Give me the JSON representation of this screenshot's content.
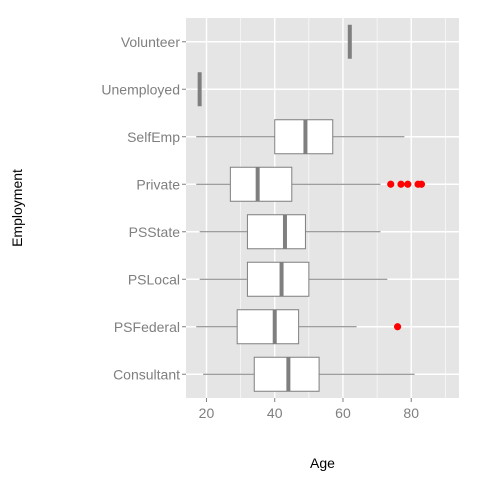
{
  "chart_data": {
    "type": "boxplot",
    "orientation": "horizontal",
    "xlabel": "Age",
    "ylabel": "Employment",
    "xlim": [
      14,
      94
    ],
    "x_ticks": [
      20,
      40,
      60,
      80
    ],
    "grid": true,
    "categories": [
      "Consultant",
      "PSFederal",
      "PSLocal",
      "PSState",
      "Private",
      "SelfEmp",
      "Unemployed",
      "Volunteer"
    ],
    "boxes": [
      {
        "category": "Consultant",
        "whisker_low": 19,
        "q1": 34,
        "median": 44,
        "q3": 53,
        "whisker_high": 81,
        "outliers": []
      },
      {
        "category": "PSFederal",
        "whisker_low": 17,
        "q1": 29,
        "median": 40,
        "q3": 47,
        "whisker_high": 64,
        "outliers": [
          76
        ]
      },
      {
        "category": "PSLocal",
        "whisker_low": 18,
        "q1": 32,
        "median": 42,
        "q3": 50,
        "whisker_high": 73,
        "outliers": []
      },
      {
        "category": "PSState",
        "whisker_low": 18,
        "q1": 32,
        "median": 43,
        "q3": 49,
        "whisker_high": 71,
        "outliers": []
      },
      {
        "category": "Private",
        "whisker_low": 17,
        "q1": 27,
        "median": 35,
        "q3": 45,
        "whisker_high": 71,
        "outliers": [
          74,
          77,
          79,
          82,
          83
        ]
      },
      {
        "category": "SelfEmp",
        "whisker_low": 17,
        "q1": 40,
        "median": 49,
        "q3": 57,
        "whisker_high": 78,
        "outliers": []
      },
      {
        "category": "Unemployed",
        "whisker_low": 18,
        "q1": 18,
        "median": 18,
        "q3": 18,
        "whisker_high": 18,
        "outliers": []
      },
      {
        "category": "Volunteer",
        "whisker_low": 62,
        "q1": 62,
        "median": 62,
        "q3": 62,
        "whisker_high": 62,
        "outliers": []
      }
    ],
    "colors": {
      "panel_background": "#e5e5e5",
      "gridline": "#ffffff",
      "box_fill": "#ffffff",
      "box_stroke": "#7f7f7f",
      "median": "#7f7f7f",
      "outlier": "#ff0000",
      "tick_text": "#7f7f7f",
      "title_text": "#000000"
    }
  }
}
